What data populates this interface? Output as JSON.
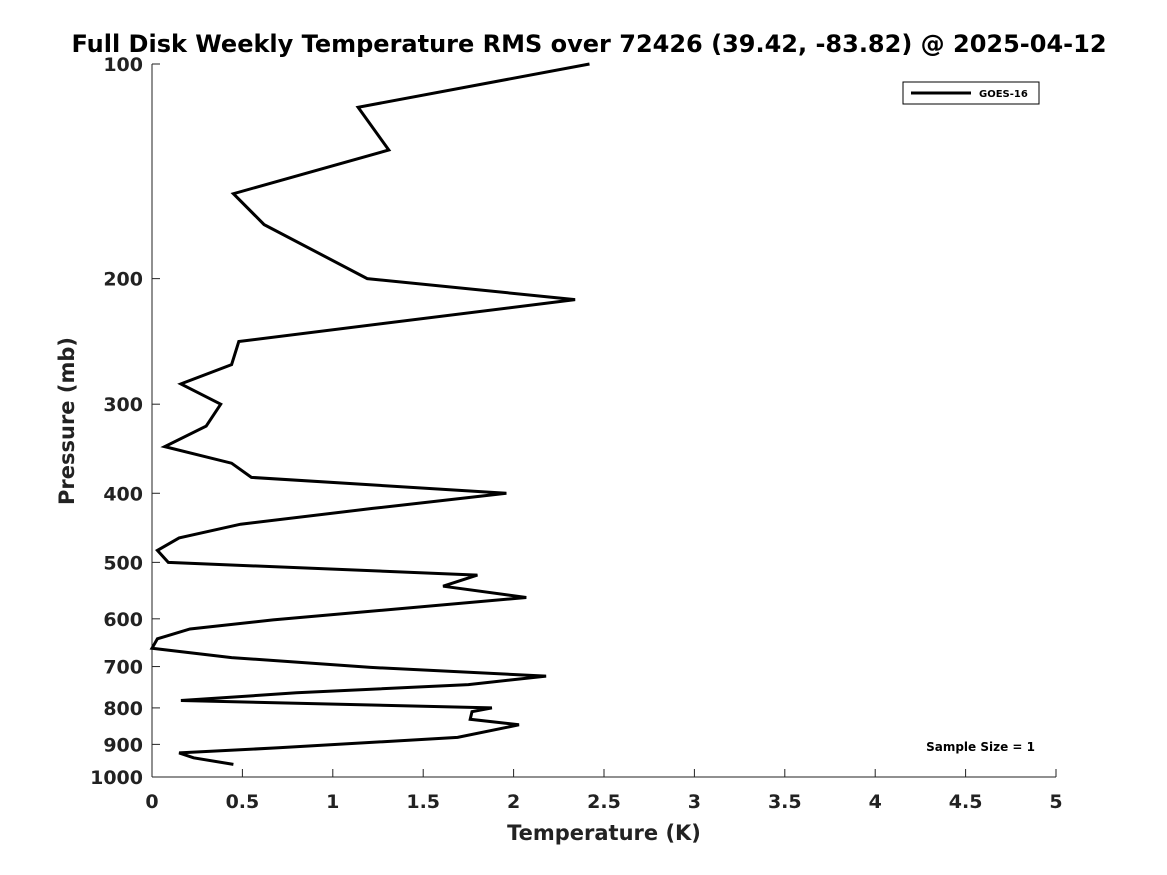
{
  "chart_data": {
    "type": "line",
    "title": "Full Disk Weekly Temperature RMS over 72426 (39.42, -83.82) @ 2025-04-12",
    "xlabel": "Temperature (K)",
    "ylabel": "Pressure (mb)",
    "xlim": [
      0,
      5
    ],
    "ylim": [
      1000,
      100
    ],
    "yscale": "log",
    "x_ticks": [
      0,
      0.5,
      1,
      1.5,
      2,
      2.5,
      3,
      3.5,
      4,
      4.5,
      5
    ],
    "x_tick_labels": [
      "0",
      "0.5",
      "1",
      "1.5",
      "2",
      "2.5",
      "3",
      "3.5",
      "4",
      "4.5",
      "5"
    ],
    "y_ticks": [
      100,
      200,
      300,
      400,
      500,
      600,
      700,
      800,
      900,
      1000
    ],
    "y_tick_labels": [
      "100",
      "200",
      "300",
      "400",
      "500",
      "600",
      "700",
      "800",
      "900",
      "1000"
    ],
    "grid": false,
    "legend_position": "top-right",
    "series": [
      {
        "name": "GOES-16",
        "color": "#000000",
        "x": [
          2.42,
          1.14,
          1.31,
          0.45,
          0.62,
          1.19,
          2.34,
          0.48,
          0.44,
          0.16,
          0.38,
          0.3,
          0.07,
          0.44,
          0.55,
          1.96,
          1.22,
          0.49,
          0.15,
          0.03,
          0.09,
          1.8,
          1.61,
          2.07,
          0.67,
          0.21,
          0.03,
          0.0,
          0.44,
          1.21,
          2.18,
          1.75,
          0.8,
          0.16,
          1.88,
          1.77,
          1.76,
          2.03,
          1.69,
          0.7,
          0.15,
          0.23,
          0.45
        ],
        "y": [
          100,
          115,
          132,
          152,
          168,
          200,
          214,
          245,
          264,
          281,
          300,
          322,
          344,
          363,
          380,
          400,
          420,
          442,
          462,
          481,
          500,
          521,
          540,
          560,
          602,
          620,
          640,
          660,
          680,
          702,
          722,
          742,
          762,
          781,
          800,
          810,
          830,
          845,
          880,
          910,
          925,
          940,
          960
        ]
      }
    ],
    "annotations": [
      "Sample Size = 1"
    ]
  }
}
